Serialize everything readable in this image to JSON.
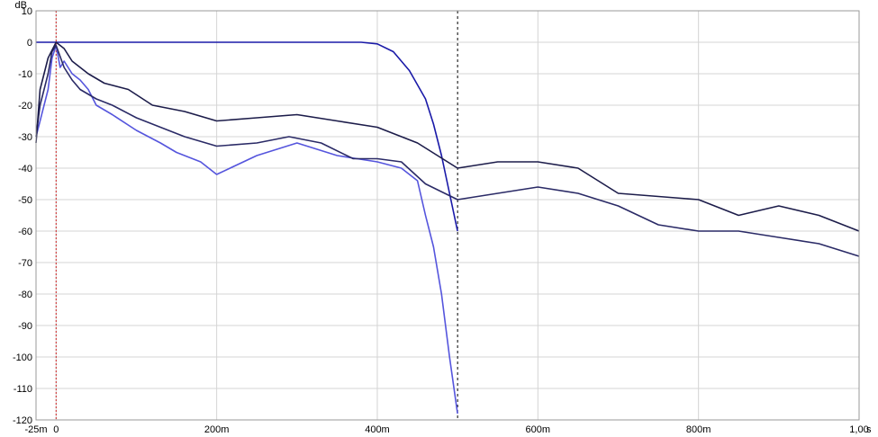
{
  "chart_data": {
    "type": "line",
    "title": "",
    "xlabel": "",
    "ylabel": "",
    "y_unit": "dB",
    "x_unit": "s",
    "xlim": [
      -0.025,
      1.0
    ],
    "ylim": [
      -120,
      10
    ],
    "grid": true,
    "legend": "none",
    "x_ticks": [
      {
        "value": -0.025,
        "label": "-25m"
      },
      {
        "value": 0.0,
        "label": "0"
      },
      {
        "value": 0.2,
        "label": "200m"
      },
      {
        "value": 0.4,
        "label": "400m"
      },
      {
        "value": 0.6,
        "label": "600m"
      },
      {
        "value": 0.8,
        "label": "800m"
      },
      {
        "value": 1.0,
        "label": "1,00"
      }
    ],
    "y_ticks": [
      {
        "value": 10,
        "label": "10"
      },
      {
        "value": 0,
        "label": "0"
      },
      {
        "value": -10,
        "label": "-10"
      },
      {
        "value": -20,
        "label": "-20"
      },
      {
        "value": -30,
        "label": "-30"
      },
      {
        "value": -40,
        "label": "-40"
      },
      {
        "value": -50,
        "label": "-50"
      },
      {
        "value": -60,
        "label": "-60"
      },
      {
        "value": -70,
        "label": "-70"
      },
      {
        "value": -80,
        "label": "-80"
      },
      {
        "value": -90,
        "label": "-90"
      },
      {
        "value": -100,
        "label": "-100"
      },
      {
        "value": -110,
        "label": "-110"
      },
      {
        "value": -120,
        "label": "-120"
      }
    ],
    "markers": [
      {
        "x": 0.0,
        "style": "dotted",
        "color": "#cc2222"
      },
      {
        "x": 0.5,
        "style": "dashed",
        "color": "#000000"
      }
    ],
    "series": [
      {
        "color": "#1a1aa8",
        "x": [
          -0.025,
          0.0,
          0.05,
          0.1,
          0.2,
          0.3,
          0.38,
          0.4,
          0.42,
          0.44,
          0.46,
          0.47,
          0.48,
          0.49,
          0.5
        ],
        "values": [
          0,
          0,
          0,
          0,
          0,
          0,
          0,
          -0.5,
          -3,
          -9,
          -18,
          -26,
          -36,
          -48,
          -60
        ]
      },
      {
        "color": "#5555dd",
        "x": [
          -0.025,
          -0.02,
          -0.01,
          -0.005,
          0.0,
          0.005,
          0.01,
          0.02,
          0.03,
          0.04,
          0.05,
          0.07,
          0.1,
          0.13,
          0.15,
          0.18,
          0.2,
          0.25,
          0.3,
          0.35,
          0.4,
          0.43,
          0.45,
          0.46,
          0.47,
          0.48,
          0.49,
          0.5
        ],
        "values": [
          -30,
          -25,
          -15,
          -5,
          -1,
          -8,
          -6,
          -10,
          -12,
          -15,
          -20,
          -23,
          -28,
          -32,
          -35,
          -38,
          -42,
          -36,
          -32,
          -36,
          -38,
          -40,
          -44,
          -55,
          -65,
          -80,
          -100,
          -118
        ]
      },
      {
        "color": "#2a2a66",
        "x": [
          -0.025,
          -0.02,
          -0.01,
          -0.005,
          0.0,
          0.01,
          0.02,
          0.03,
          0.05,
          0.07,
          0.1,
          0.13,
          0.16,
          0.2,
          0.25,
          0.29,
          0.33,
          0.37,
          0.4,
          0.43,
          0.46,
          0.5,
          0.55,
          0.6,
          0.65,
          0.7,
          0.75,
          0.8,
          0.85,
          0.9,
          0.95,
          1.0
        ],
        "values": [
          -30,
          -20,
          -10,
          -3,
          -1,
          -8,
          -12,
          -15,
          -18,
          -20,
          -24,
          -27,
          -30,
          -33,
          -32,
          -30,
          -32,
          -37,
          -37,
          -38,
          -45,
          -50,
          -48,
          -46,
          -48,
          -52,
          -58,
          -60,
          -60,
          -62,
          -64,
          -68
        ]
      },
      {
        "color": "#1c1c4a",
        "x": [
          -0.025,
          -0.02,
          -0.01,
          0.0,
          0.01,
          0.02,
          0.04,
          0.06,
          0.09,
          0.12,
          0.16,
          0.2,
          0.25,
          0.3,
          0.35,
          0.4,
          0.45,
          0.5,
          0.55,
          0.6,
          0.65,
          0.7,
          0.75,
          0.8,
          0.85,
          0.9,
          0.95,
          1.0
        ],
        "values": [
          -32,
          -15,
          -5,
          0,
          -2,
          -6,
          -10,
          -13,
          -15,
          -20,
          -22,
          -25,
          -24,
          -23,
          -25,
          -27,
          -32,
          -40,
          -38,
          -38,
          -40,
          -48,
          -49,
          -50,
          -55,
          -52,
          -55,
          -60
        ]
      }
    ]
  }
}
